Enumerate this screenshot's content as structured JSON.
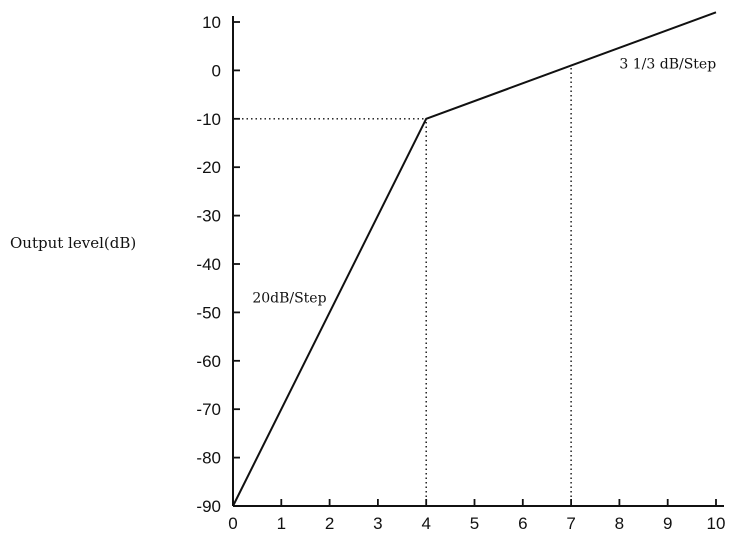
{
  "chart_data": {
    "type": "line",
    "title": "",
    "xlabel": "",
    "ylabel": "Output level(dB)",
    "xlim": [
      0,
      10
    ],
    "ylim": [
      -90,
      10
    ],
    "x_ticks": [
      "0",
      "1",
      "2",
      "3",
      "4",
      "5",
      "6",
      "7",
      "8",
      "9",
      "10"
    ],
    "y_ticks": [
      "10",
      "0",
      "-10",
      "-20",
      "-30",
      "-40",
      "-50",
      "-60",
      "-70",
      "-80",
      "-90"
    ],
    "grid": false,
    "legend": "none",
    "series": [
      {
        "x": [
          0,
          4,
          10
        ],
        "y": [
          -90,
          -10,
          12
        ],
        "color": "#111111"
      }
    ],
    "reference_lines": [
      {
        "points": [
          [
            0,
            -10
          ],
          [
            4,
            -10
          ]
        ],
        "style": "dotted"
      },
      {
        "points": [
          [
            4,
            -90
          ],
          [
            4,
            -10
          ]
        ],
        "style": "dotted"
      },
      {
        "points": [
          [
            7,
            -90
          ],
          [
            7,
            1
          ]
        ],
        "style": "dotted"
      }
    ],
    "annotations": [
      {
        "text": "20dB/Step",
        "x": 0.4,
        "y": -48
      },
      {
        "text": "3 1/3 dB/Step",
        "x": 8,
        "y": 0.4
      }
    ]
  }
}
